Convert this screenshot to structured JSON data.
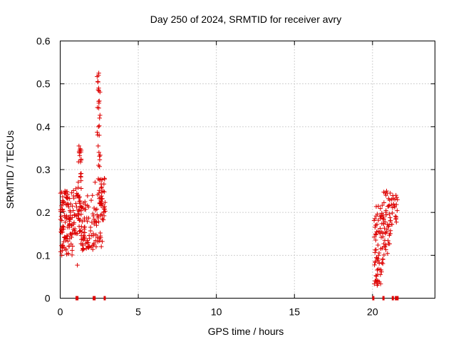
{
  "chart_data": {
    "type": "scatter",
    "title": "Day 250 of 2024, SRMTID for receiver avry",
    "xlabel": "GPS time / hours",
    "ylabel": "SRMTID / TECUs",
    "xlim": [
      0,
      24
    ],
    "ylim": [
      0,
      0.6
    ],
    "xticks": [
      0,
      5,
      10,
      15,
      20
    ],
    "yticks": [
      0,
      0.1,
      0.2,
      0.3,
      0.4,
      0.5,
      0.6
    ],
    "xtick_labels": [
      "0",
      "5",
      "10",
      "15",
      "20"
    ],
    "ytick_labels": [
      "0",
      "0.1",
      "0.2",
      "0.3",
      "0.4",
      "0.5",
      "0.6"
    ],
    "grid": true,
    "marker": "+",
    "series_color": "#dd0000",
    "clusters": [
      {
        "x_range": [
          0.0,
          0.8
        ],
        "y_range": [
          0.1,
          0.25
        ],
        "count": 110
      },
      {
        "x_range": [
          0.8,
          1.3
        ],
        "y_range": [
          0.15,
          0.26
        ],
        "count": 40
      },
      {
        "x_range": [
          1.15,
          1.35
        ],
        "y_range": [
          0.2,
          0.35
        ],
        "count": 25
      },
      {
        "x_range": [
          1.3,
          2.2
        ],
        "y_range": [
          0.11,
          0.24
        ],
        "count": 70
      },
      {
        "x_range": [
          2.2,
          2.7
        ],
        "y_range": [
          0.12,
          0.28
        ],
        "count": 35
      },
      {
        "x_range": [
          2.35,
          2.6
        ],
        "y_range": [
          0.3,
          0.53
        ],
        "count": 18
      },
      {
        "x_range": [
          2.6,
          2.9
        ],
        "y_range": [
          0.18,
          0.28
        ],
        "count": 30
      },
      {
        "x_range": [
          20.1,
          20.7
        ],
        "y_range": [
          0.03,
          0.22
        ],
        "count": 70
      },
      {
        "x_range": [
          20.7,
          21.2
        ],
        "y_range": [
          0.1,
          0.25
        ],
        "count": 45
      },
      {
        "x_range": [
          21.2,
          21.6
        ],
        "y_range": [
          0.17,
          0.24
        ],
        "count": 20
      }
    ],
    "points": [
      [
        1.1,
        0.077
      ],
      [
        2.3,
        0.12
      ],
      [
        0.1,
        0.1
      ],
      [
        20.3,
        0.03
      ],
      [
        20.35,
        0.04
      ],
      [
        2.45,
        0.52
      ],
      [
        2.47,
        0.525
      ],
      [
        2.46,
        0.49
      ],
      [
        2.5,
        0.46
      ],
      [
        2.48,
        0.455
      ],
      [
        2.52,
        0.42
      ],
      [
        2.45,
        0.4
      ],
      [
        2.5,
        0.38
      ],
      [
        2.43,
        0.355
      ],
      [
        2.48,
        0.34
      ],
      [
        1.2,
        0.355
      ],
      [
        1.25,
        0.345
      ],
      [
        20.9,
        0.25
      ],
      [
        20.95,
        0.245
      ],
      [
        21.5,
        0.24
      ],
      [
        21.55,
        0.235
      ],
      [
        0.3,
        0.25
      ],
      [
        0.35,
        0.245
      ]
    ],
    "zero_points": [
      1.05,
      1.1,
      2.15,
      2.2,
      2.85,
      20.05,
      20.7,
      21.3,
      21.5,
      21.6
    ]
  }
}
